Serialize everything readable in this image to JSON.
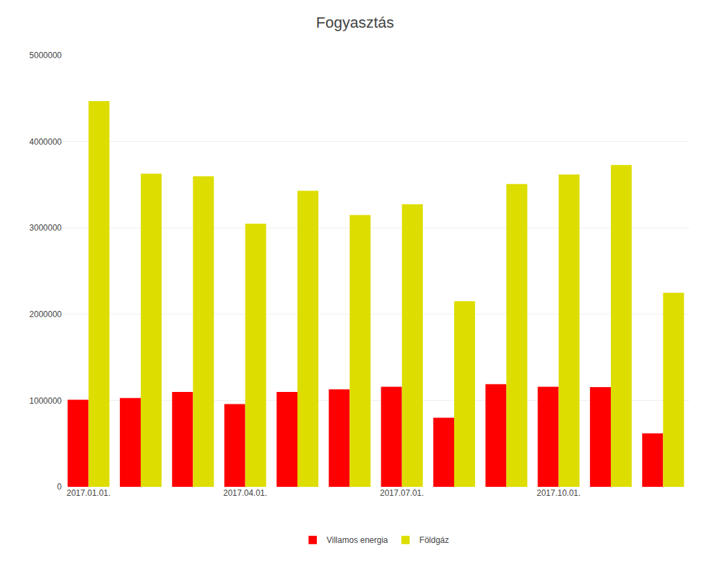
{
  "chart_data": {
    "type": "bar",
    "title": "Fogyasztás",
    "categories": [
      "2017.01.01.",
      null,
      null,
      "2017.04.01.",
      null,
      null,
      "2017.07.01.",
      null,
      null,
      "2017.10.01.",
      null,
      null
    ],
    "series": [
      {
        "name": "Villamos energia",
        "color": "#ff0000",
        "values": [
          1010000,
          1030000,
          1100000,
          960000,
          1100000,
          1130000,
          1160000,
          800000,
          1190000,
          1160000,
          1155000,
          620000
        ]
      },
      {
        "name": "Földgáz",
        "color": "#dddd00",
        "values": [
          4470000,
          3630000,
          3600000,
          3050000,
          3430000,
          3150000,
          3275000,
          2150000,
          3510000,
          3620000,
          3730000,
          2250000
        ]
      }
    ],
    "ylim": [
      0,
      5000000
    ],
    "yticks": [
      0,
      1000000,
      2000000,
      3000000,
      4000000,
      5000000
    ],
    "grid": true,
    "legend": "bottom"
  }
}
